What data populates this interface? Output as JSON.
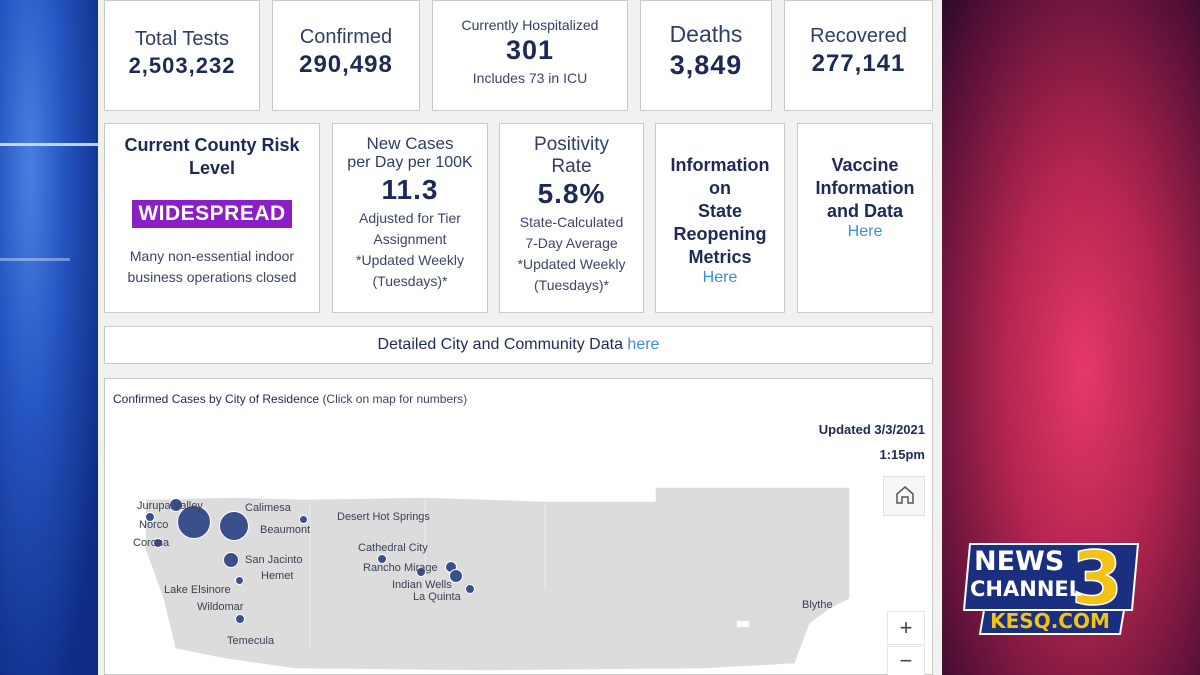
{
  "stats": {
    "total_tests": {
      "label": "Total Tests",
      "value": "2,503,232"
    },
    "confirmed": {
      "label": "Confirmed",
      "value": "290,498"
    },
    "hospitalized": {
      "label": "Currently Hospitalized",
      "value": "301",
      "note": "Includes 73 in ICU"
    },
    "deaths": {
      "label": "Deaths",
      "value": "3,849"
    },
    "recovered": {
      "label": "Recovered",
      "value": "277,141"
    }
  },
  "risk": {
    "title_line1": "Current County Risk",
    "title_line2": "Level",
    "badge": "WIDESPREAD",
    "note_line1": "Many non-essential indoor",
    "note_line2": "business operations closed",
    "badge_color": "#8a1ec7"
  },
  "new_cases": {
    "label_line1": "New Cases",
    "label_line2": "per Day per 100K",
    "value": "11.3",
    "note": [
      "Adjusted for Tier",
      "Assignment",
      "*Updated Weekly",
      "(Tuesdays)*"
    ]
  },
  "positivity": {
    "label_line1": "Positivity",
    "label_line2": "Rate",
    "value": "5.8%",
    "note": [
      "State-Calculated",
      "7-Day Average",
      "*Updated Weekly",
      "(Tuesdays)*"
    ]
  },
  "reopening": {
    "title": [
      "Information",
      "on",
      "State",
      "Reopening",
      "Metrics"
    ],
    "link": "Here"
  },
  "vaccine": {
    "title": [
      "Vaccine",
      "Information",
      "and Data"
    ],
    "link": "Here"
  },
  "detailed": {
    "text": "Detailed City and Community Data",
    "link": "here"
  },
  "map": {
    "title": "Confirmed Cases by City of Residence",
    "hint": "(Click on map for numbers)",
    "updated_line1": "Updated 3/3/2021",
    "updated_line2": "1:15pm",
    "zoom_in": "+",
    "zoom_out": "−",
    "home_icon": "home-icon",
    "cities": [
      "Jurupa Valley",
      "Calimesa",
      "Norco",
      "Beaumont",
      "Corona",
      "Desert Hot Springs",
      "Cathedral City",
      "San Jacinto",
      "Rancho Mirage",
      "Hemet",
      "Indian Wells",
      "Lake Elsinore",
      "La Quinta",
      "Wildomar",
      "Temecula",
      "Blythe"
    ]
  },
  "logo": {
    "line1": "NEWS",
    "line2": "CHANNEL",
    "number": "3",
    "site": "KESQ.COM"
  },
  "colors": {
    "accent": "#1c2a55",
    "link": "#3a8fd6",
    "map_land": "#dcdcdc",
    "dot": "#3b4f8c"
  }
}
